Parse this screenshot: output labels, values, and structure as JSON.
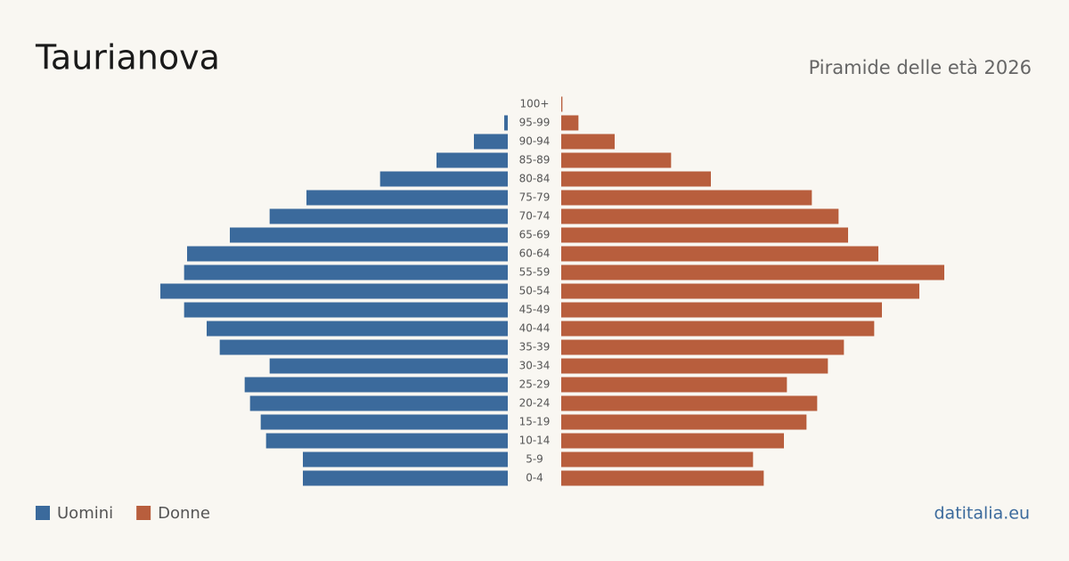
{
  "chart_data": {
    "type": "pyramid",
    "title": "Taurianova",
    "subtitle": "Piramide delle età 2026",
    "source": "datitalia.eu",
    "categories": [
      "100+",
      "95-99",
      "90-94",
      "85-89",
      "80-84",
      "75-79",
      "70-74",
      "65-69",
      "60-64",
      "55-59",
      "50-54",
      "45-49",
      "40-44",
      "35-39",
      "30-34",
      "25-29",
      "20-24",
      "15-19",
      "10-14",
      "5-9",
      "0-4"
    ],
    "series": [
      {
        "name": "Uomini",
        "color": "#3b6a9c",
        "values": [
          0,
          6,
          57,
          120,
          215,
          339,
          401,
          468,
          540,
          545,
          585,
          545,
          507,
          485,
          401,
          443,
          434,
          416,
          407,
          345,
          345
        ]
      },
      {
        "name": "Donne",
        "color": "#b85e3d",
        "values": [
          2,
          29,
          90,
          185,
          252,
          422,
          467,
          483,
          534,
          645,
          603,
          540,
          527,
          476,
          449,
          380,
          431,
          413,
          375,
          323,
          341
        ]
      }
    ]
  }
}
